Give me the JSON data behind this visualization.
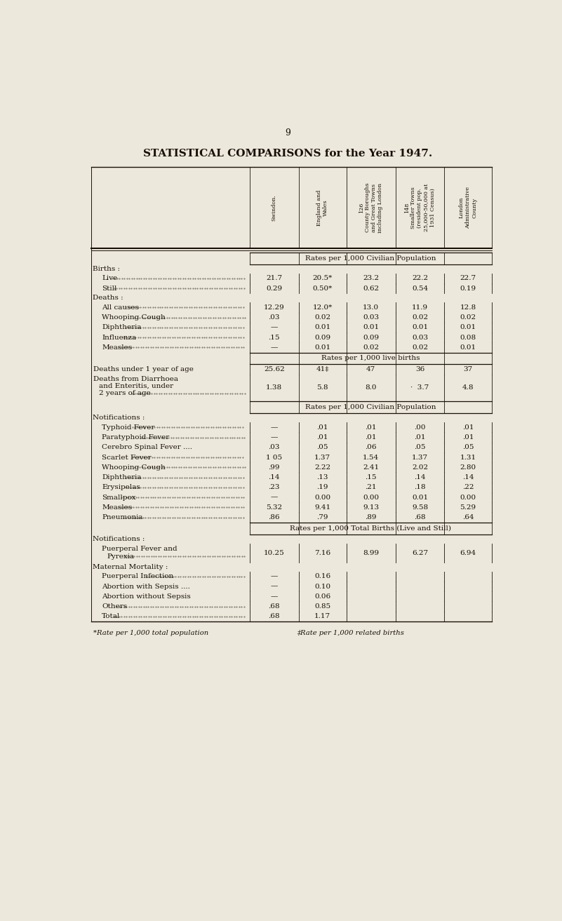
{
  "page_number": "9",
  "title": "STATISTICAL COMPARISONS for the Year 1947.",
  "bg_color": "#ece8dc",
  "col_headers": [
    "Swindon.",
    "England and\nWales",
    "126\nCounty Boroughs\nand Great Towns\nincluding London",
    "148\nSmaller Towns\n(resident pop.\n25,000-50,000 at\n1931 Census)",
    "London\nAdministrative\nCounty"
  ],
  "rows": [
    {
      "type": "section",
      "text": "Rates per 1,000 Civilian Population"
    },
    {
      "type": "group",
      "label": "Births :"
    },
    {
      "type": "data",
      "indent": 1,
      "label": "Live",
      "dots": true,
      "values": [
        "21.7",
        "20.5*",
        "23.2",
        "22.2",
        "22.7"
      ]
    },
    {
      "type": "data",
      "indent": 1,
      "label": "Still",
      "dots": true,
      "values": [
        "0.29",
        "0.50*",
        "0.62",
        "0.54",
        "0.19"
      ]
    },
    {
      "type": "group",
      "label": "Deaths :"
    },
    {
      "type": "data",
      "indent": 1,
      "label": "All causes",
      "dots": true,
      "values": [
        "12.29",
        "12.0*",
        "13.0",
        "11.9",
        "12.8"
      ]
    },
    {
      "type": "data",
      "indent": 1,
      "label": "Whooping Cough",
      "dots": true,
      "values": [
        ".03",
        "0.02",
        "0.03",
        "0.02",
        "0.02"
      ]
    },
    {
      "type": "data",
      "indent": 1,
      "label": "Diphtheria",
      "dots": true,
      "values": [
        "—",
        "0.01",
        "0.01",
        "0.01",
        "0.01"
      ]
    },
    {
      "type": "data",
      "indent": 1,
      "label": "Influenza",
      "dots": true,
      "values": [
        ".15",
        "0.09",
        "0.09",
        "0.03",
        "0.08"
      ]
    },
    {
      "type": "data",
      "indent": 1,
      "label": "Measles",
      "dots": true,
      "values": [
        "—",
        "0.01",
        "0.02",
        "0.02",
        "0.01"
      ]
    },
    {
      "type": "section",
      "text": "Rates per 1,000 live births"
    },
    {
      "type": "data",
      "indent": 0,
      "label": "Deaths under 1 year of age",
      "dots": false,
      "values": [
        "25.62",
        "41‡",
        "47",
        "36",
        "37"
      ]
    },
    {
      "type": "data3",
      "indent": 0,
      "label": "Deaths from Diarrhoea\nand Enteritis, under\n2 years of age",
      "dots": true,
      "values": [
        "1.38",
        "5.8",
        "8.0",
        "3.7",
        "4.8"
      ]
    },
    {
      "type": "section",
      "text": "Rates per 1,000 Civilian Population"
    },
    {
      "type": "group",
      "label": "Notifications :"
    },
    {
      "type": "data",
      "indent": 1,
      "label": "Typhoid Fever",
      "dots": true,
      "values": [
        "—",
        ".01",
        ".01",
        ".00",
        ".01"
      ]
    },
    {
      "type": "data",
      "indent": 1,
      "label": "Paratyphoid Fever",
      "dots": true,
      "values": [
        "—",
        ".01",
        ".01",
        ".01",
        ".01"
      ]
    },
    {
      "type": "data",
      "indent": 1,
      "label": "Cerebro Spinal Fever ....",
      "dots": false,
      "values": [
        ".03",
        ".05",
        ".06",
        ".05",
        ".05"
      ]
    },
    {
      "type": "data",
      "indent": 1,
      "label": "Scarlet Fever",
      "dots": true,
      "values": [
        "1 05",
        "1.37",
        "1.54",
        "1.37",
        "1.31"
      ]
    },
    {
      "type": "data",
      "indent": 1,
      "label": "Whooping Cough",
      "dots": true,
      "values": [
        ".99",
        "2.22",
        "2.41",
        "2.02",
        "2.80"
      ]
    },
    {
      "type": "data",
      "indent": 1,
      "label": "Diphtheria",
      "dots": true,
      "values": [
        ".14",
        ".13",
        ".15",
        ".14",
        ".14"
      ]
    },
    {
      "type": "data",
      "indent": 1,
      "label": "Erysipelas",
      "dots": true,
      "values": [
        ".23",
        ".19",
        ".21",
        ".18",
        ".22"
      ]
    },
    {
      "type": "data",
      "indent": 1,
      "label": "Smallpox",
      "dots": true,
      "values": [
        "—",
        "0.00",
        "0.00",
        "0.01",
        "0.00"
      ]
    },
    {
      "type": "data",
      "indent": 1,
      "label": "Measles",
      "dots": true,
      "values": [
        "5.32",
        "9.41",
        "9.13",
        "9.58",
        "5.29"
      ]
    },
    {
      "type": "data",
      "indent": 1,
      "label": "Pneumonia",
      "dots": true,
      "values": [
        ".86",
        ".79",
        ".89",
        ".68",
        ".64"
      ]
    },
    {
      "type": "section",
      "text": "Rates per 1,000 Total Births (Live and Still)"
    },
    {
      "type": "group",
      "label": "Notifications :"
    },
    {
      "type": "data2",
      "indent": 1,
      "label": "Puerperal Fever and\nPyrexia",
      "dots": true,
      "values": [
        "10.25",
        "7.16",
        "8.99",
        "6.27",
        "6.94"
      ]
    },
    {
      "type": "group",
      "label": "Maternal Mortality :"
    },
    {
      "type": "data",
      "indent": 1,
      "label": "Puerperal Infection",
      "dots": true,
      "values": [
        "—",
        "0.16",
        "",
        "",
        ""
      ]
    },
    {
      "type": "data",
      "indent": 1,
      "label": "Abortion with Sepsis ....",
      "dots": false,
      "values": [
        "—",
        "0.10",
        "",
        "",
        ""
      ]
    },
    {
      "type": "data",
      "indent": 1,
      "label": "Abortion without Sepsis",
      "dots": false,
      "values": [
        "—",
        "0.06",
        "",
        "",
        ""
      ]
    },
    {
      "type": "data",
      "indent": 1,
      "label": "Others",
      "dots": true,
      "values": [
        ".68",
        "0.85",
        "",
        "",
        ""
      ]
    },
    {
      "type": "data",
      "indent": 1,
      "label": "Total",
      "dots": true,
      "values": [
        ".68",
        "1.17",
        "",
        "",
        ""
      ]
    }
  ],
  "footnote1": "*Rate per 1,000 total population",
  "footnote2": "‡Rate per 1,000 related births"
}
